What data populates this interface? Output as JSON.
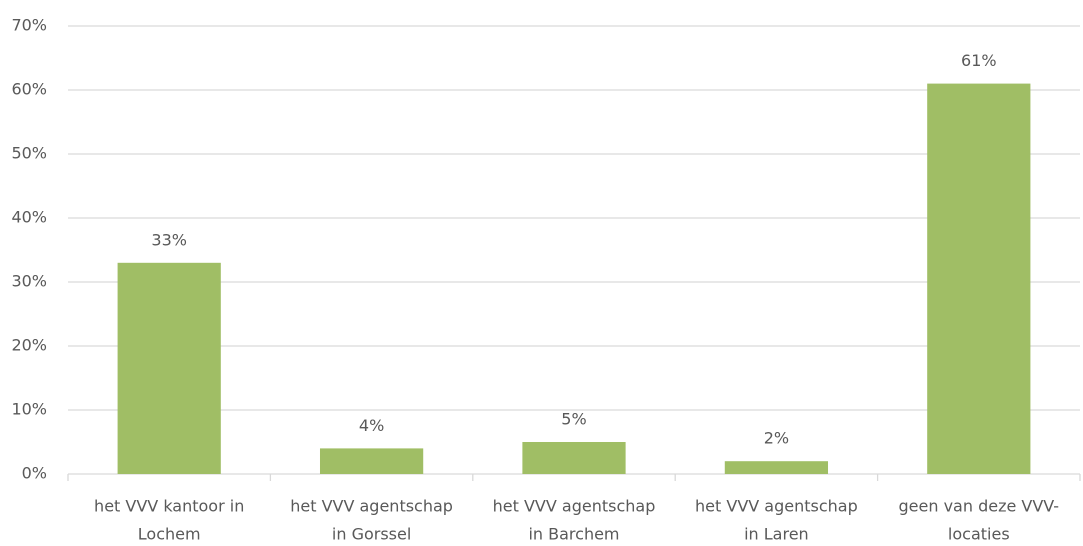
{
  "chart_data": {
    "type": "bar",
    "categories": [
      [
        "het VVV kantoor in",
        "Lochem"
      ],
      [
        "het VVV agentschap",
        "in Gorssel"
      ],
      [
        "het VVV agentschap",
        "in Barchem"
      ],
      [
        "het VVV agentschap",
        "in Laren"
      ],
      [
        "geen van deze VVV-",
        "locaties"
      ]
    ],
    "values": [
      33,
      4,
      5,
      2,
      61
    ],
    "value_labels": [
      "33%",
      "4%",
      "5%",
      "2%",
      "61%"
    ],
    "color": "#a0be65",
    "ylim": [
      0,
      70
    ],
    "yticks": [
      {
        "value": 0,
        "label": "0%"
      },
      {
        "value": 10,
        "label": "10%"
      },
      {
        "value": 20,
        "label": "20%"
      },
      {
        "value": 30,
        "label": "30%"
      },
      {
        "value": 40,
        "label": "40%"
      },
      {
        "value": 50,
        "label": "50%"
      },
      {
        "value": 60,
        "label": "60%"
      },
      {
        "value": 70,
        "label": "70%"
      }
    ],
    "grid": true
  }
}
